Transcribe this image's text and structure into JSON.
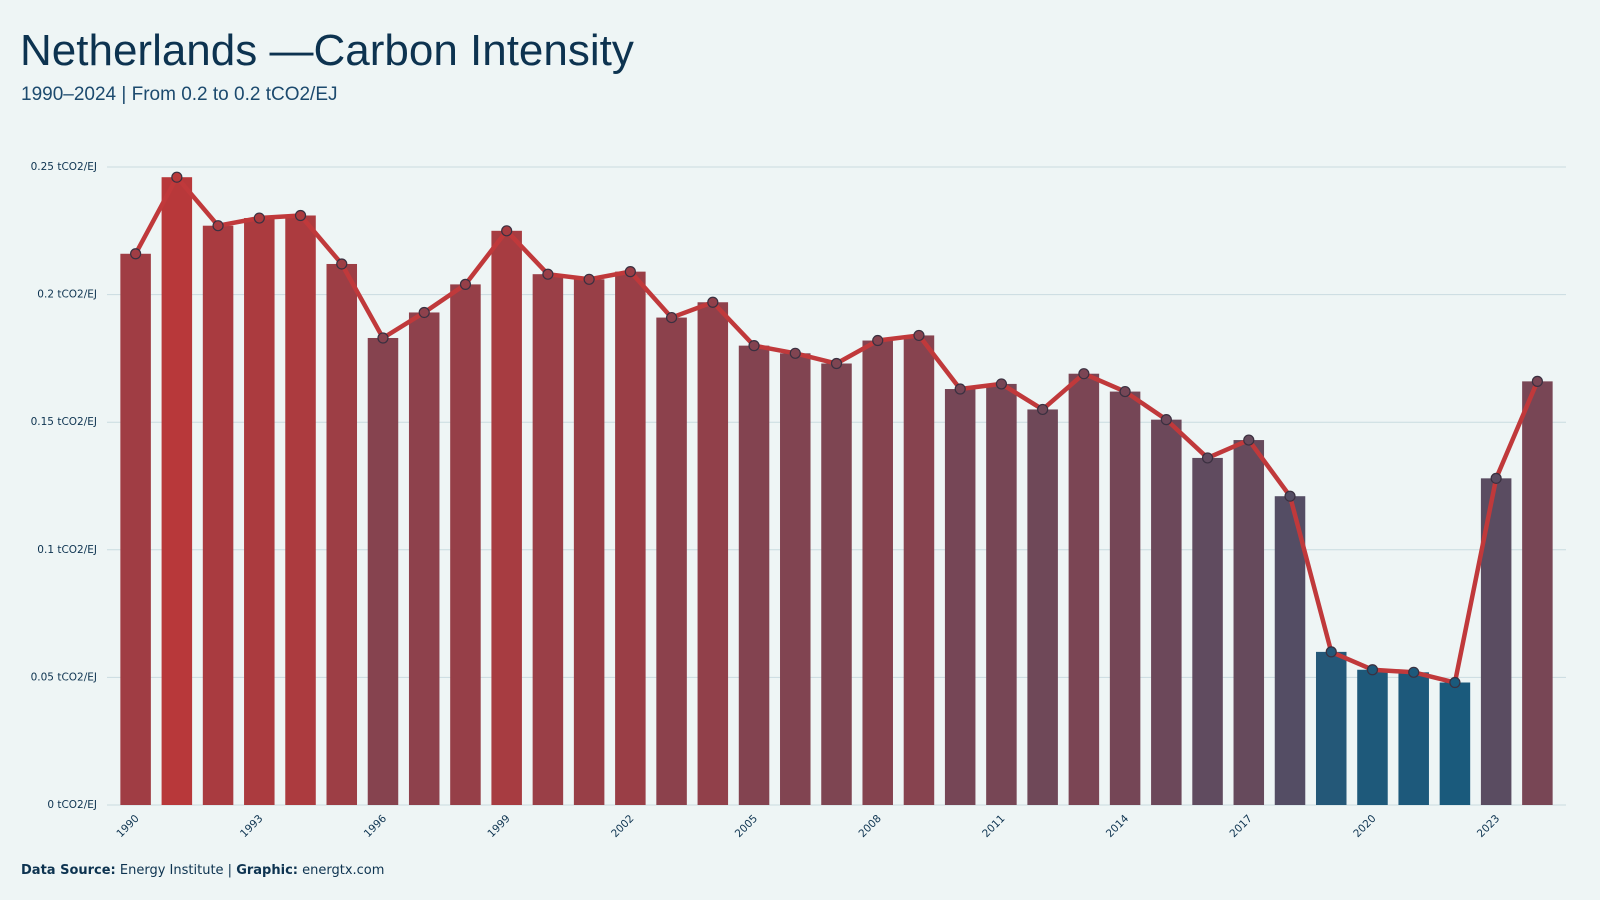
{
  "chart_data": {
    "type": "bar",
    "title": "Netherlands —Carbon Intensity",
    "subtitle": "1990–2024 | From 0.2 to 0.2 tCO2/EJ",
    "x": [
      1990,
      1991,
      1992,
      1993,
      1994,
      1995,
      1996,
      1997,
      1998,
      1999,
      2000,
      2001,
      2002,
      2003,
      2004,
      2005,
      2006,
      2007,
      2008,
      2009,
      2010,
      2011,
      2012,
      2013,
      2014,
      2015,
      2016,
      2017,
      2018,
      2019,
      2020,
      2021,
      2022,
      2023,
      2024
    ],
    "values": [
      0.216,
      0.246,
      0.227,
      0.23,
      0.231,
      0.212,
      0.183,
      0.193,
      0.204,
      0.225,
      0.208,
      0.206,
      0.209,
      0.191,
      0.197,
      0.18,
      0.177,
      0.173,
      0.182,
      0.184,
      0.163,
      0.165,
      0.155,
      0.169,
      0.162,
      0.151,
      0.136,
      0.143,
      0.121,
      0.06,
      0.053,
      0.052,
      0.048,
      0.128,
      0.166
    ],
    "xlim": [
      1989.5,
      2024.5
    ],
    "xticks": [
      1990,
      1993,
      1996,
      1999,
      2002,
      2005,
      2008,
      2011,
      2014,
      2017,
      2020,
      2023
    ],
    "ylim": [
      0,
      0.25
    ],
    "yticks": [
      {
        "value": 0,
        "label": "0 tCO2/EJ"
      },
      {
        "value": 0.05,
        "label": "0.05 tCO2/EJ"
      },
      {
        "value": 0.1,
        "label": "0.1 tCO2/EJ"
      },
      {
        "value": 0.15,
        "label": "0.15 tCO2/EJ"
      },
      {
        "value": 0.2,
        "label": "0.2 tCO2/EJ"
      },
      {
        "value": 0.25,
        "label": "0.25 tCO2/EJ"
      }
    ],
    "grid": true,
    "bar_colors": {
      "low": "#1a5a7c",
      "high": "#b8383a"
    },
    "line_color": "#c0393b",
    "source": {
      "label": "Data Source:",
      "text": "Energy Institute |",
      "graphic_label": "Graphic:",
      "graphic": "energtx.com"
    }
  }
}
